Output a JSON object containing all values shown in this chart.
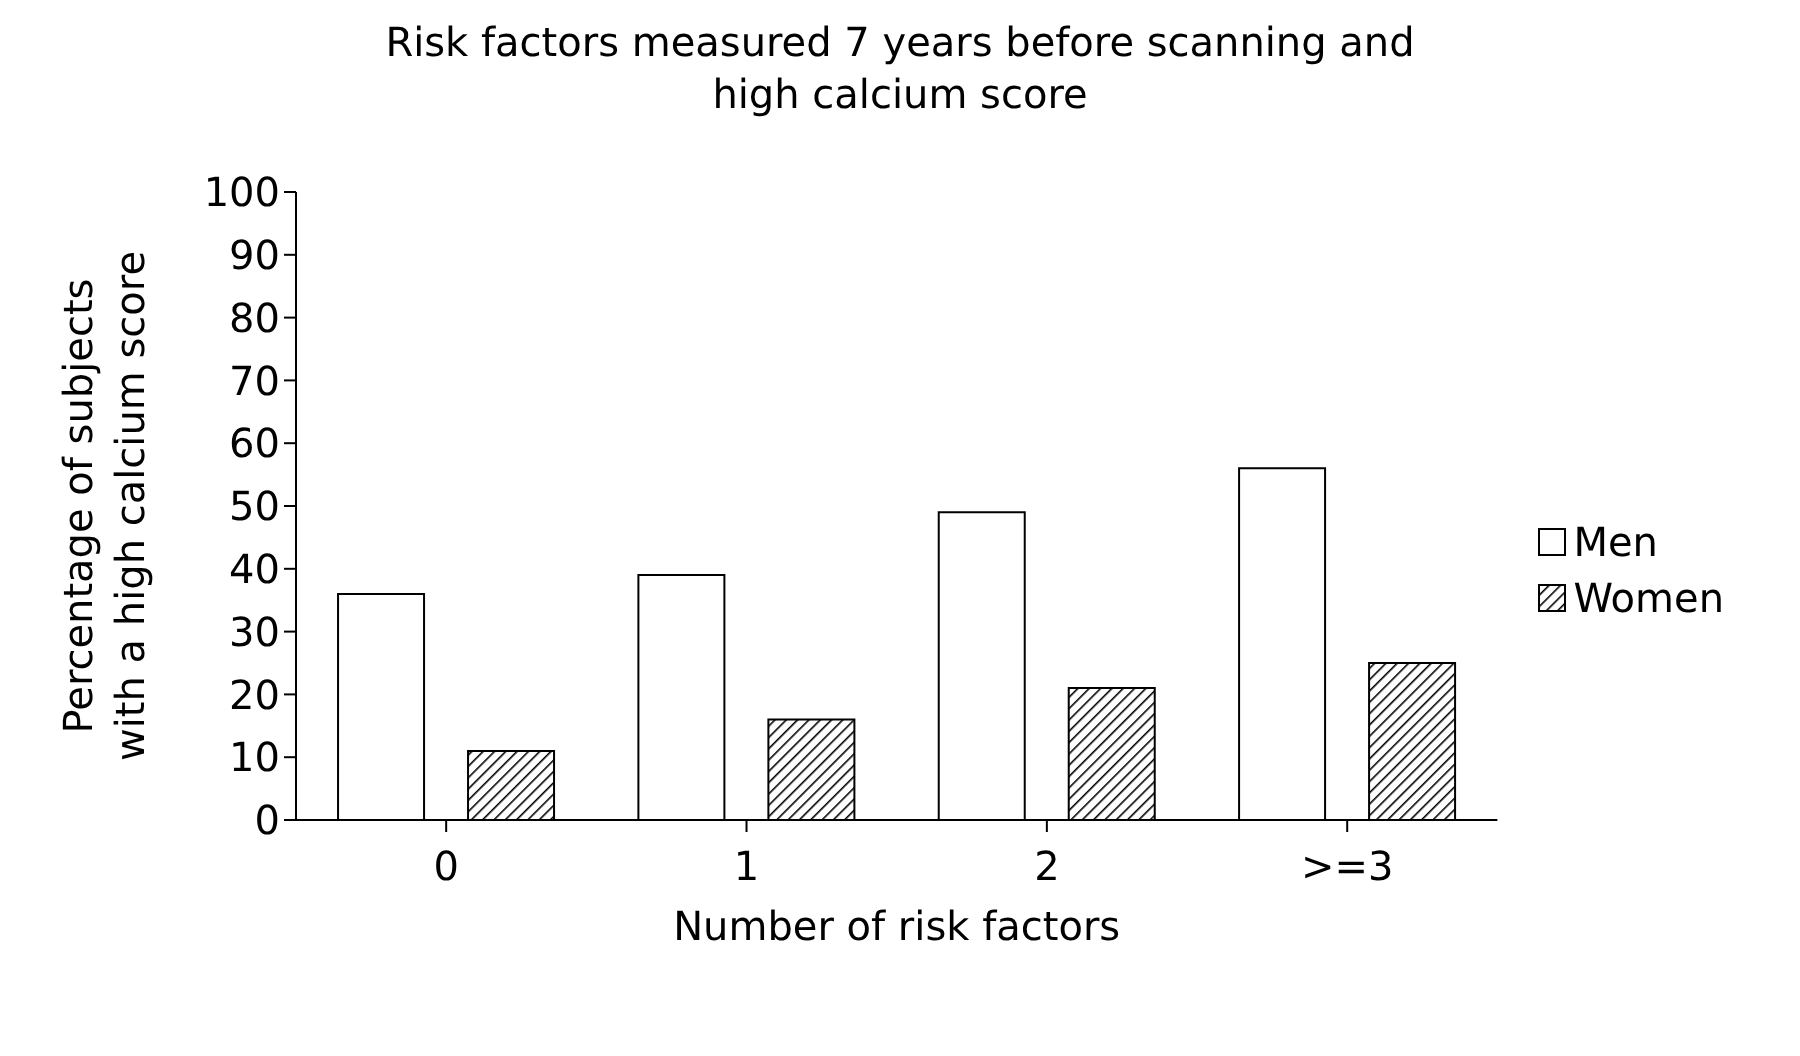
{
  "chart_data": {
    "type": "bar",
    "title": "Risk factors measured 7 years before scanning and high calcium score",
    "xlabel": "Number of risk factors",
    "ylabel": "Percentage of subjects with a high calcium score",
    "categories": [
      "0",
      "1",
      "2",
      ">=3"
    ],
    "series": [
      {
        "name": "Men",
        "color": "#ffffff",
        "values": [
          36,
          39,
          49,
          56
        ]
      },
      {
        "name": "Women",
        "color": "#000000",
        "values": [
          11,
          16,
          21,
          25
        ]
      }
    ],
    "ylim": [
      0,
      100
    ],
    "yticks": [
      0,
      10,
      20,
      30,
      40,
      50,
      60,
      70,
      80,
      90,
      100
    ],
    "grid": false,
    "legend": "right"
  }
}
